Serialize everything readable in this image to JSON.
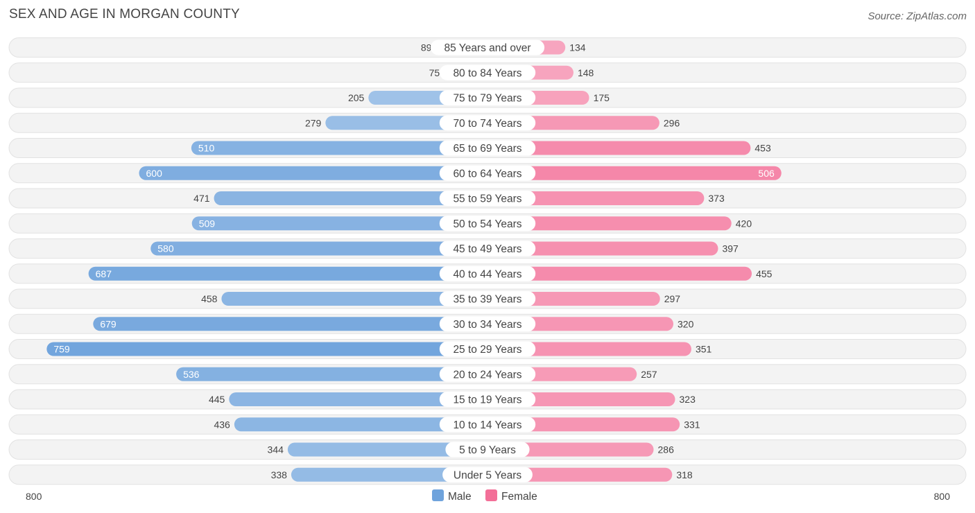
{
  "chart_data": {
    "type": "bar",
    "orientation": "horizontal-diverging",
    "title": "SEX AND AGE IN MORGAN COUNTY",
    "source": "Source: ZipAtlas.com",
    "categories": [
      "85 Years and over",
      "80 to 84 Years",
      "75 to 79 Years",
      "70 to 74 Years",
      "65 to 69 Years",
      "60 to 64 Years",
      "55 to 59 Years",
      "50 to 54 Years",
      "45 to 49 Years",
      "40 to 44 Years",
      "35 to 39 Years",
      "30 to 34 Years",
      "25 to 29 Years",
      "20 to 24 Years",
      "15 to 19 Years",
      "10 to 14 Years",
      "5 to 9 Years",
      "Under 5 Years"
    ],
    "series": [
      {
        "name": "Male",
        "color": "#6fa3dc",
        "values": [
          89,
          75,
          205,
          279,
          510,
          600,
          471,
          509,
          580,
          687,
          458,
          679,
          759,
          536,
          445,
          436,
          344,
          338
        ]
      },
      {
        "name": "Female",
        "color": "#f36f98",
        "values": [
          134,
          148,
          175,
          296,
          453,
          506,
          373,
          420,
          397,
          455,
          297,
          320,
          351,
          257,
          323,
          331,
          286,
          318
        ]
      }
    ],
    "axis": {
      "min_label": "800",
      "max_label": "800",
      "max": 800
    },
    "legend_position": "bottom-center"
  }
}
